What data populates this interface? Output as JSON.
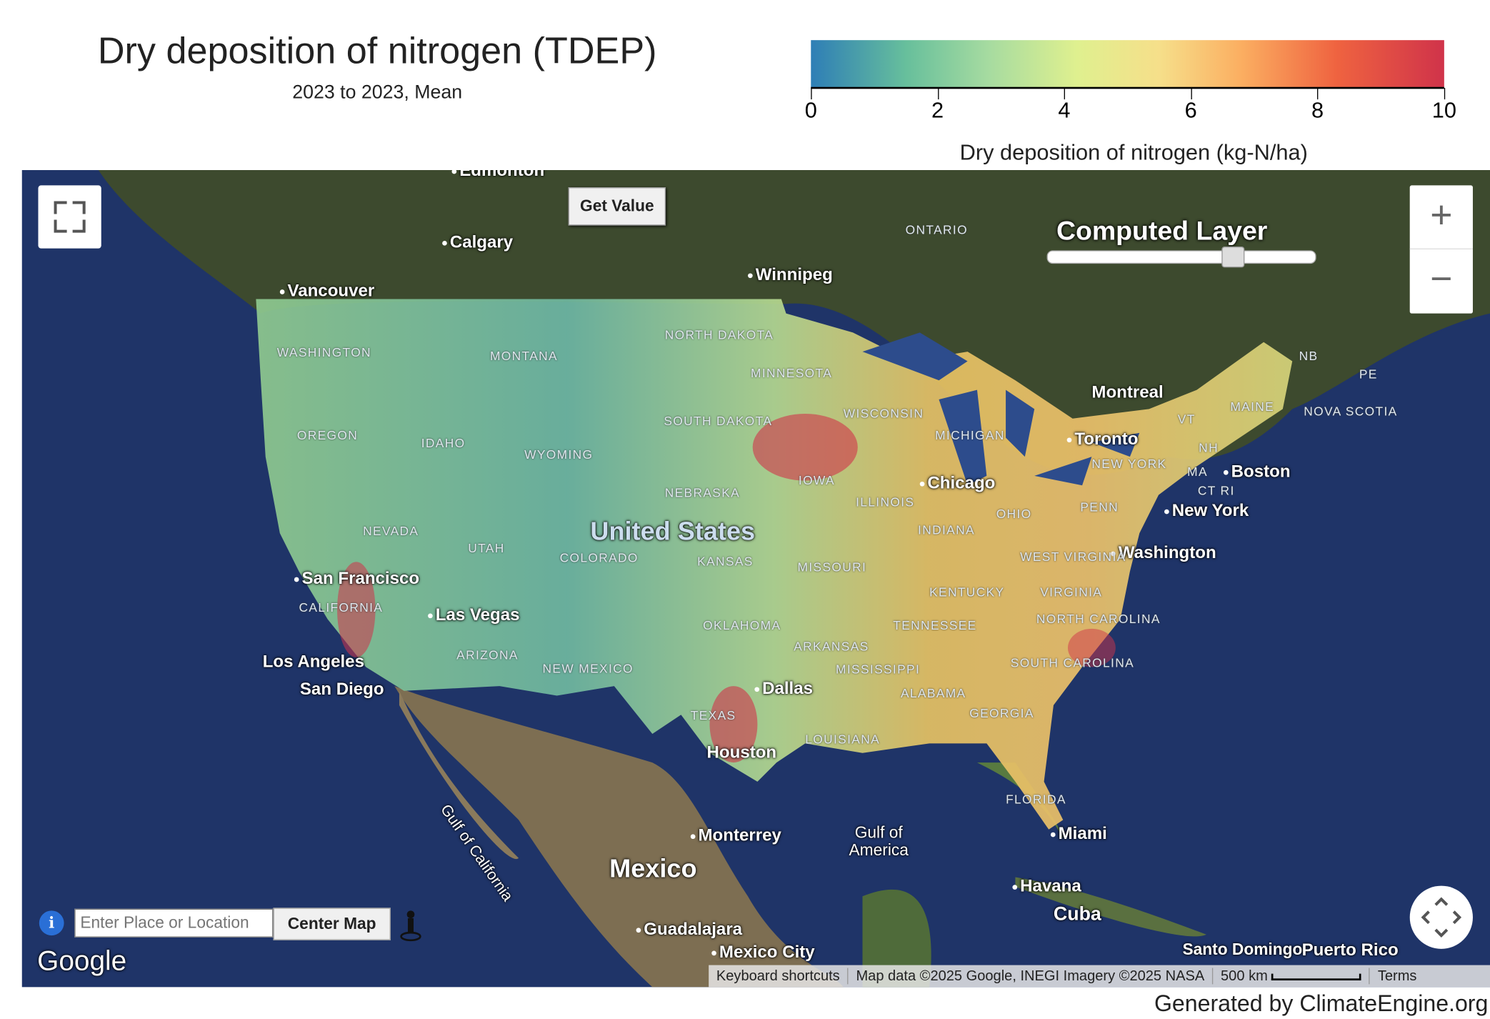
{
  "header": {
    "title": "Dry deposition of nitrogen (TDEP)",
    "subtitle": "2023 to 2023, Mean"
  },
  "colorbar": {
    "ticks": [
      "0",
      "2",
      "4",
      "6",
      "8",
      "10"
    ],
    "label": "Dry deposition of nitrogen (kg-N/ha)",
    "colors": [
      "#2e7eb6",
      "#67bf9c",
      "#dff08f",
      "#fbae61",
      "#ef6340",
      "#d0334a"
    ],
    "range": [
      0,
      10
    ]
  },
  "map": {
    "get_value": "Get Value",
    "layer_label": "Computed Layer",
    "layer_opacity": 0.7,
    "zoom_in": "+",
    "zoom_out": "−",
    "search_placeholder": "Enter Place or Location",
    "center_map": "Center Map",
    "google": "Google",
    "attribution": {
      "shortcuts": "Keyboard shortcuts",
      "data": "Map data ©2025 Google, INEGI Imagery ©2025 NASA",
      "scale": "500 km",
      "terms": "Terms"
    },
    "cities": [
      "Edmonton",
      "Calgary",
      "Vancouver",
      "Winnipeg",
      "Montreal",
      "Toronto",
      "Boston",
      "New York",
      "Washington",
      "Chicago",
      "Dallas",
      "Houston",
      "San Francisco",
      "Las Vegas",
      "Los Angeles",
      "San Diego",
      "Monterrey",
      "Guadalajara",
      "Mexico City",
      "Miami",
      "Havana",
      "Cuba",
      "Mexico",
      "United States",
      "Gulf of California",
      "Gulf of America",
      "Santo Domingo",
      "Puerto Rico"
    ],
    "regions": [
      "ONTARIO",
      "NB",
      "PE",
      "NOVA SCOTIA",
      "MAINE",
      "VT",
      "NH",
      "MA",
      "CT RI",
      "NEW YORK",
      "PENN",
      "OHIO",
      "INDIANA",
      "ILLINOIS",
      "MICHIGAN",
      "WISCONSIN",
      "MINNESOTA",
      "IOWA",
      "NORTH DAKOTA",
      "SOUTH DAKOTA",
      "NEBRASKA",
      "KANSAS",
      "MISSOURI",
      "OKLAHOMA",
      "TEXAS",
      "ARKANSAS",
      "LOUISIANA",
      "MISSISSIPPI",
      "ALABAMA",
      "GEORGIA",
      "FLORIDA",
      "TENNESSEE",
      "KENTUCKY",
      "WEST VIRGINIA",
      "VIRGINIA",
      "NORTH CAROLINA",
      "SOUTH CAROLINA",
      "WASHINGTON",
      "OREGON",
      "IDAHO",
      "MONTANA",
      "WYOMING",
      "COLORADO",
      "UTAH",
      "NEVADA",
      "CALIFORNIA",
      "ARIZONA",
      "NEW MEXICO"
    ]
  },
  "footer": "Generated by ClimateEngine.org"
}
